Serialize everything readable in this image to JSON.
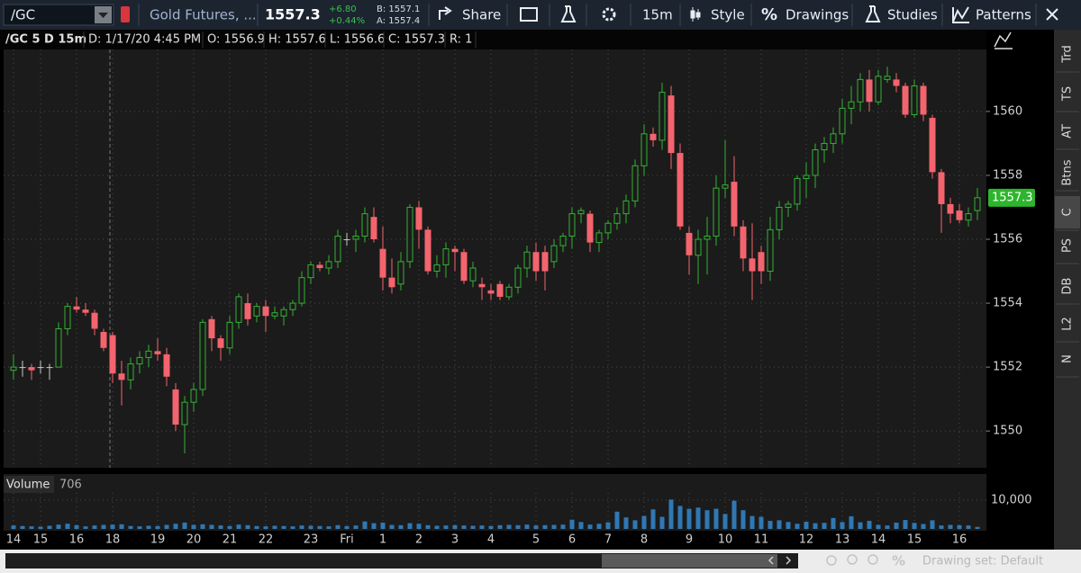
{
  "toolbar": {
    "symbol": "/GC",
    "description": "Gold Futures, ...",
    "last": "1557.3",
    "change": "+6.80",
    "change_pct": "+0.44%",
    "bid": "B: 1557.1",
    "ask": "A: 1557.4",
    "share": "Share",
    "interval": "15m",
    "style": "Style",
    "drawings": "Drawings",
    "studies": "Studies",
    "patterns": "Patterns"
  },
  "header": {
    "label": "/GC 5 D 15m",
    "date": "D: 1/17/20 4:45 PM",
    "open": "O: 1556.9",
    "high": "H: 1557.6",
    "low": "L: 1556.6",
    "close": "C: 1557.3",
    "range": "R: 1"
  },
  "sidebar": {
    "tabs": [
      "Trd",
      "TS",
      "AT",
      "Btns",
      "C",
      "PS",
      "DB",
      "L2",
      "N"
    ]
  },
  "footer": {
    "drawing_set": "Drawing set: Default"
  },
  "chart_data": {
    "type": "candlestick",
    "categories": [
      "14",
      null,
      null,
      "15",
      null,
      null,
      null,
      "16",
      null,
      null,
      null,
      "18",
      null,
      null,
      null,
      null,
      "19",
      null,
      null,
      null,
      "20",
      null,
      null,
      null,
      "21",
      null,
      null,
      null,
      "22",
      null,
      null,
      null,
      null,
      "23",
      null,
      null,
      null,
      "Fri",
      null,
      null,
      null,
      "1",
      null,
      null,
      null,
      "2",
      null,
      null,
      null,
      "3",
      null,
      null,
      null,
      "4",
      null,
      null,
      null,
      null,
      "5",
      null,
      null,
      null,
      "6",
      null,
      null,
      null,
      "7",
      null,
      null,
      null,
      "8",
      null,
      null,
      null,
      null,
      "9",
      null,
      null,
      null,
      "10",
      null,
      null,
      null,
      "11",
      null,
      null,
      null,
      null,
      "12",
      null,
      null,
      null,
      "13",
      null,
      null,
      null,
      "14",
      null,
      null,
      null,
      "15",
      null,
      null,
      null,
      null,
      "16",
      null,
      null
    ],
    "open": [
      1551.9,
      1552.0,
      1552.0,
      1552.0,
      1552.0,
      1552.0,
      1553.2,
      1553.9,
      1553.8,
      1553.7,
      1553.1,
      1553.0,
      1551.8,
      1551.6,
      1552.1,
      1552.3,
      1552.5,
      1552.4,
      1551.3,
      1550.2,
      1550.9,
      1551.3,
      1553.5,
      1552.9,
      1552.6,
      1553.4,
      1554.0,
      1553.6,
      1553.9,
      1553.6,
      1553.6,
      1553.8,
      1554.0,
      1554.8,
      1555.2,
      1555.1,
      1555.3,
      1556.0,
      1556.0,
      1556.1,
      1556.7,
      1555.7,
      1554.8,
      1554.6,
      1555.3,
      1557.0,
      1556.3,
      1555.0,
      1555.2,
      1555.7,
      1555.6,
      1554.7,
      1554.6,
      1554.4,
      1554.6,
      1554.2,
      1554.5,
      1555.1,
      1555.6,
      1555.6,
      1555.3,
      1555.8,
      1556.1,
      1556.8,
      1556.8,
      1555.9,
      1556.2,
      1556.5,
      1556.8,
      1557.2,
      1558.3,
      1559.3,
      1559.1,
      1560.5,
      1558.7,
      1556.2,
      1555.5,
      1556.0,
      1556.1,
      1557.6,
      1557.8,
      1556.4,
      1555.4,
      1555.6,
      1555.0,
      1556.3,
      1557.0,
      1557.1,
      1557.9,
      1558.0,
      1558.8,
      1559.0,
      1559.3,
      1560.1,
      1560.3,
      1561.0,
      1560.3,
      1561.0,
      1561.0,
      1560.8,
      1559.9,
      1560.8,
      1559.8,
      1558.1,
      1557.1,
      1556.9,
      1556.6,
      1556.9
    ],
    "high": [
      1552.4,
      1552.2,
      1552.1,
      1552.2,
      1552.1,
      1553.4,
      1554.0,
      1554.2,
      1554.0,
      1553.8,
      1553.2,
      1553.1,
      1552.2,
      1552.3,
      1552.5,
      1552.7,
      1552.9,
      1552.6,
      1551.5,
      1551.1,
      1551.5,
      1553.5,
      1553.6,
      1553.0,
      1553.6,
      1554.3,
      1554.3,
      1554.0,
      1554.1,
      1553.9,
      1553.9,
      1554.1,
      1555.0,
      1555.3,
      1555.3,
      1555.5,
      1556.3,
      1556.2,
      1556.3,
      1557.0,
      1557.0,
      1556.4,
      1555.4,
      1555.6,
      1557.1,
      1557.2,
      1556.4,
      1555.5,
      1555.9,
      1555.8,
      1555.7,
      1555.3,
      1554.8,
      1554.6,
      1554.7,
      1554.6,
      1555.2,
      1555.8,
      1555.9,
      1555.8,
      1556.0,
      1556.2,
      1557.0,
      1557.0,
      1556.9,
      1556.3,
      1556.6,
      1557.0,
      1557.4,
      1558.5,
      1559.6,
      1559.5,
      1560.9,
      1560.8,
      1559.0,
      1556.4,
      1556.3,
      1556.7,
      1558.0,
      1559.1,
      1558.6,
      1556.6,
      1556.5,
      1555.8,
      1556.7,
      1557.2,
      1557.2,
      1558.0,
      1558.4,
      1559.0,
      1559.2,
      1559.5,
      1560.4,
      1560.8,
      1561.2,
      1561.3,
      1561.3,
      1561.4,
      1561.2,
      1560.9,
      1561.0,
      1560.9,
      1559.9,
      1558.2,
      1557.3,
      1557.1,
      1557.0,
      1557.6
    ],
    "low": [
      1551.6,
      1551.7,
      1551.6,
      1551.8,
      1551.6,
      1552.0,
      1553.0,
      1553.7,
      1553.6,
      1553.0,
      1552.5,
      1551.5,
      1550.8,
      1551.3,
      1551.8,
      1552.0,
      1552.2,
      1551.4,
      1550.0,
      1549.3,
      1550.6,
      1551.1,
      1552.5,
      1552.2,
      1552.4,
      1553.2,
      1553.3,
      1553.4,
      1553.1,
      1553.5,
      1553.3,
      1553.6,
      1553.9,
      1554.6,
      1555.0,
      1554.9,
      1555.1,
      1555.8,
      1555.6,
      1555.9,
      1555.9,
      1554.4,
      1554.3,
      1554.4,
      1555.1,
      1555.7,
      1554.9,
      1554.8,
      1554.8,
      1555.0,
      1554.6,
      1554.5,
      1554.1,
      1554.1,
      1554.1,
      1554.1,
      1554.3,
      1554.8,
      1554.7,
      1554.4,
      1555.1,
      1555.6,
      1555.7,
      1556.5,
      1555.6,
      1555.6,
      1556.0,
      1556.3,
      1556.5,
      1557.0,
      1558.0,
      1558.9,
      1558.8,
      1558.2,
      1556.3,
      1554.9,
      1554.6,
      1554.9,
      1555.8,
      1557.3,
      1556.1,
      1555.0,
      1554.1,
      1554.6,
      1554.7,
      1556.0,
      1556.7,
      1556.9,
      1557.3,
      1557.6,
      1558.4,
      1558.7,
      1559.0,
      1559.6,
      1560.0,
      1560.0,
      1560.2,
      1560.9,
      1560.6,
      1559.8,
      1559.8,
      1559.7,
      1557.9,
      1556.2,
      1556.5,
      1556.5,
      1556.4,
      1556.6
    ],
    "close": [
      1552.0,
      1552.0,
      1551.9,
      1552.0,
      1552.0,
      1553.2,
      1553.9,
      1553.8,
      1553.7,
      1553.2,
      1552.6,
      1551.8,
      1551.6,
      1552.1,
      1552.3,
      1552.5,
      1552.4,
      1551.7,
      1550.2,
      1550.9,
      1551.3,
      1553.4,
      1552.9,
      1552.6,
      1553.4,
      1554.2,
      1553.5,
      1553.9,
      1553.6,
      1553.7,
      1553.8,
      1554.0,
      1554.8,
      1555.2,
      1555.1,
      1555.3,
      1556.1,
      1556.0,
      1556.1,
      1556.8,
      1556.0,
      1554.8,
      1554.5,
      1555.3,
      1557.0,
      1556.3,
      1555.0,
      1555.2,
      1555.7,
      1555.6,
      1554.7,
      1555.1,
      1554.5,
      1554.3,
      1554.2,
      1554.5,
      1555.1,
      1555.6,
      1555.0,
      1555.0,
      1555.8,
      1556.1,
      1556.8,
      1556.9,
      1555.9,
      1556.2,
      1556.5,
      1556.8,
      1557.2,
      1558.3,
      1559.3,
      1559.1,
      1560.6,
      1558.7,
      1556.4,
      1555.5,
      1556.0,
      1556.1,
      1557.6,
      1557.7,
      1556.4,
      1555.4,
      1555.0,
      1555.0,
      1556.3,
      1557.0,
      1557.1,
      1557.9,
      1558.0,
      1558.8,
      1559.0,
      1559.3,
      1560.1,
      1560.3,
      1561.0,
      1560.3,
      1561.1,
      1561.1,
      1560.8,
      1559.9,
      1560.8,
      1559.9,
      1558.1,
      1557.1,
      1556.8,
      1556.6,
      1556.8,
      1557.3
    ],
    "up_color": "#33b233",
    "down_color": "#f4646e",
    "doji_color": "#c8c8c8",
    "ylim": [
      1548.85,
      1561.94
    ],
    "yticks": [
      1550,
      1552,
      1554,
      1556,
      1558,
      1560
    ],
    "grid": true,
    "last_price_color": "#2db52d",
    "volume": {
      "label": "Volume",
      "color": "#2f78b4",
      "ylim": [
        0,
        12500
      ],
      "yticks": [
        {
          "value": 10000,
          "label": "10,000"
        }
      ],
      "values": [
        1200,
        1000,
        900,
        800,
        1100,
        1500,
        1800,
        1300,
        900,
        1200,
        1400,
        1500,
        1600,
        1000,
        900,
        1100,
        1000,
        1400,
        1800,
        2200,
        1400,
        1600,
        1400,
        1200,
        1000,
        1500,
        1300,
        1000,
        900,
        1100,
        1000,
        900,
        1200,
        1100,
        1000,
        900,
        1300,
        1000,
        1200,
        2600,
        2000,
        2200,
        1400,
        1300,
        2000,
        1800,
        1300,
        1100,
        1200,
        1300,
        1200,
        1100,
        1200,
        1000,
        1300,
        1400,
        1300,
        1500,
        1200,
        1300,
        1400,
        1500,
        3200,
        2400,
        1500,
        1800,
        2300,
        6000,
        4000,
        3000,
        4500,
        6800,
        4200,
        10200,
        8000,
        7000,
        7400,
        6500,
        7000,
        5200,
        9800,
        6500,
        4500,
        4200,
        2800,
        3000,
        2400,
        1800,
        2500,
        2000,
        2100,
        3800,
        2400,
        4400,
        2300,
        2800,
        1400,
        1200,
        2200,
        3100,
        2100,
        1700,
        3000,
        1200,
        1400,
        1300,
        1200,
        706
      ]
    }
  }
}
